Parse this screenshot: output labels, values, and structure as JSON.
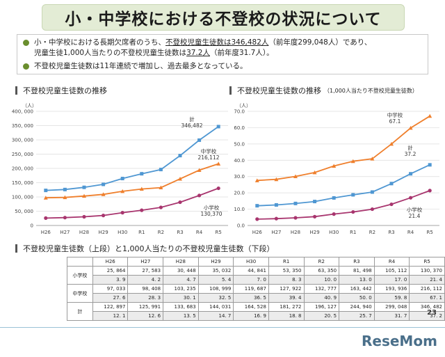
{
  "title": "小・中学校における不登校の状況について",
  "summary": {
    "b1_pre": "小・中学校における長期欠席者のうち、",
    "b1_u1": "不登校児童生徒数は346,482人",
    "b1_mid": "（前年度299,048人）であり、",
    "b1_l2_pre": "児童生徒1,000人当たりの不登校児童生徒数は",
    "b1_u2": "37.2人",
    "b1_l2_post": "（前年度31.7人）。",
    "b2": "不登校児童生徒数は11年連続で増加し、過去最多となっている。"
  },
  "sections": {
    "left": "不登校児童生徒数の推移",
    "right": "不登校児童生徒数の推移",
    "right_small": "（1,000人当たり不登校児童生徒数）",
    "table": "不登校児童生徒数（上段）と1,000人当たりの不登校児童生徒数（下段）"
  },
  "colors": {
    "elementary": "#a8356e",
    "junior_high": "#ef7f2c",
    "total": "#4f97d2"
  },
  "chart_data": [
    {
      "type": "line",
      "title": "不登校児童生徒数の推移",
      "ylabel": "（人）",
      "ylim": [
        0,
        400000
      ],
      "yticks": [
        "0",
        "50, 000",
        "100, 000",
        "150, 000",
        "200, 000",
        "250, 000",
        "300, 000",
        "350, 000",
        "400, 000"
      ],
      "categories": [
        "H26",
        "H27",
        "H28",
        "H29",
        "H30",
        "R1",
        "R2",
        "R3",
        "R4",
        "R5"
      ],
      "series": [
        {
          "name": "小学校",
          "values": [
            25864,
            27583,
            30448,
            35032,
            44841,
            53350,
            63350,
            81498,
            105112,
            130370
          ],
          "end_label": "130,370"
        },
        {
          "name": "中学校",
          "values": [
            97033,
            98408,
            103235,
            108999,
            119687,
            127922,
            132777,
            163442,
            193936,
            216112
          ],
          "end_label": "216,112"
        },
        {
          "name": "計",
          "values": [
            122897,
            125991,
            133683,
            144031,
            164528,
            181272,
            196127,
            244940,
            299048,
            346482
          ],
          "end_label": "346,482"
        }
      ]
    },
    {
      "type": "line",
      "title": "不登校児童生徒数の推移（1,000人当たり不登校児童生徒数）",
      "ylabel": "（人）",
      "ylim": [
        0,
        70
      ],
      "yticks": [
        "0.0",
        "10.0",
        "20.0",
        "30.0",
        "40.0",
        "50.0",
        "60.0",
        "70.0"
      ],
      "categories": [
        "H26",
        "H27",
        "H28",
        "H29",
        "H30",
        "R1",
        "R2",
        "R3",
        "R4",
        "R5"
      ],
      "series": [
        {
          "name": "小学校",
          "values": [
            3.9,
            4.2,
            4.7,
            5.4,
            7.0,
            8.3,
            10.0,
            13.0,
            17.0,
            21.4
          ],
          "end_label": "21.4"
        },
        {
          "name": "中学校",
          "values": [
            27.6,
            28.3,
            30.1,
            32.5,
            36.5,
            39.4,
            40.9,
            50.0,
            59.8,
            67.1
          ],
          "end_label": "67.1"
        },
        {
          "name": "計",
          "values": [
            12.1,
            12.6,
            13.5,
            14.7,
            16.9,
            18.8,
            20.5,
            25.7,
            31.7,
            37.2
          ],
          "end_label": "37.2"
        }
      ]
    },
    {
      "type": "table",
      "columns": [
        "H26",
        "H27",
        "H28",
        "H29",
        "H30",
        "R1",
        "R2",
        "R3",
        "R4",
        "R5"
      ],
      "rows": [
        {
          "label": "小学校",
          "counts": [
            "25, 864",
            "27, 583",
            "30, 448",
            "35, 032",
            "44, 841",
            "53, 350",
            "63, 350",
            "81, 498",
            "105, 112",
            "130, 370"
          ],
          "rates": [
            "3. 9",
            "4. 2",
            "4. 7",
            "5. 4",
            "7. 0",
            "8. 3",
            "10. 0",
            "13. 0",
            "17. 0",
            "21. 4"
          ]
        },
        {
          "label": "中学校",
          "counts": [
            "97, 033",
            "98, 408",
            "103, 235",
            "108, 999",
            "119, 687",
            "127, 922",
            "132, 777",
            "163, 442",
            "193, 936",
            "216, 112"
          ],
          "rates": [
            "27. 6",
            "28. 3",
            "30. 1",
            "32. 5",
            "36. 5",
            "39. 4",
            "40. 9",
            "50. 0",
            "59. 8",
            "67. 1"
          ]
        },
        {
          "label": "計",
          "counts": [
            "122, 897",
            "125, 991",
            "133, 683",
            "144, 031",
            "164, 528",
            "181, 272",
            "196, 127",
            "244, 940",
            "299, 048",
            "346, 482"
          ],
          "rates": [
            "12. 1",
            "12. 6",
            "13. 5",
            "14. 7",
            "16. 9",
            "18. 8",
            "20. 5",
            "25. 7",
            "31. 7",
            "37. 2"
          ]
        }
      ]
    }
  ],
  "page_number": "23",
  "watermark": "ReseMom"
}
